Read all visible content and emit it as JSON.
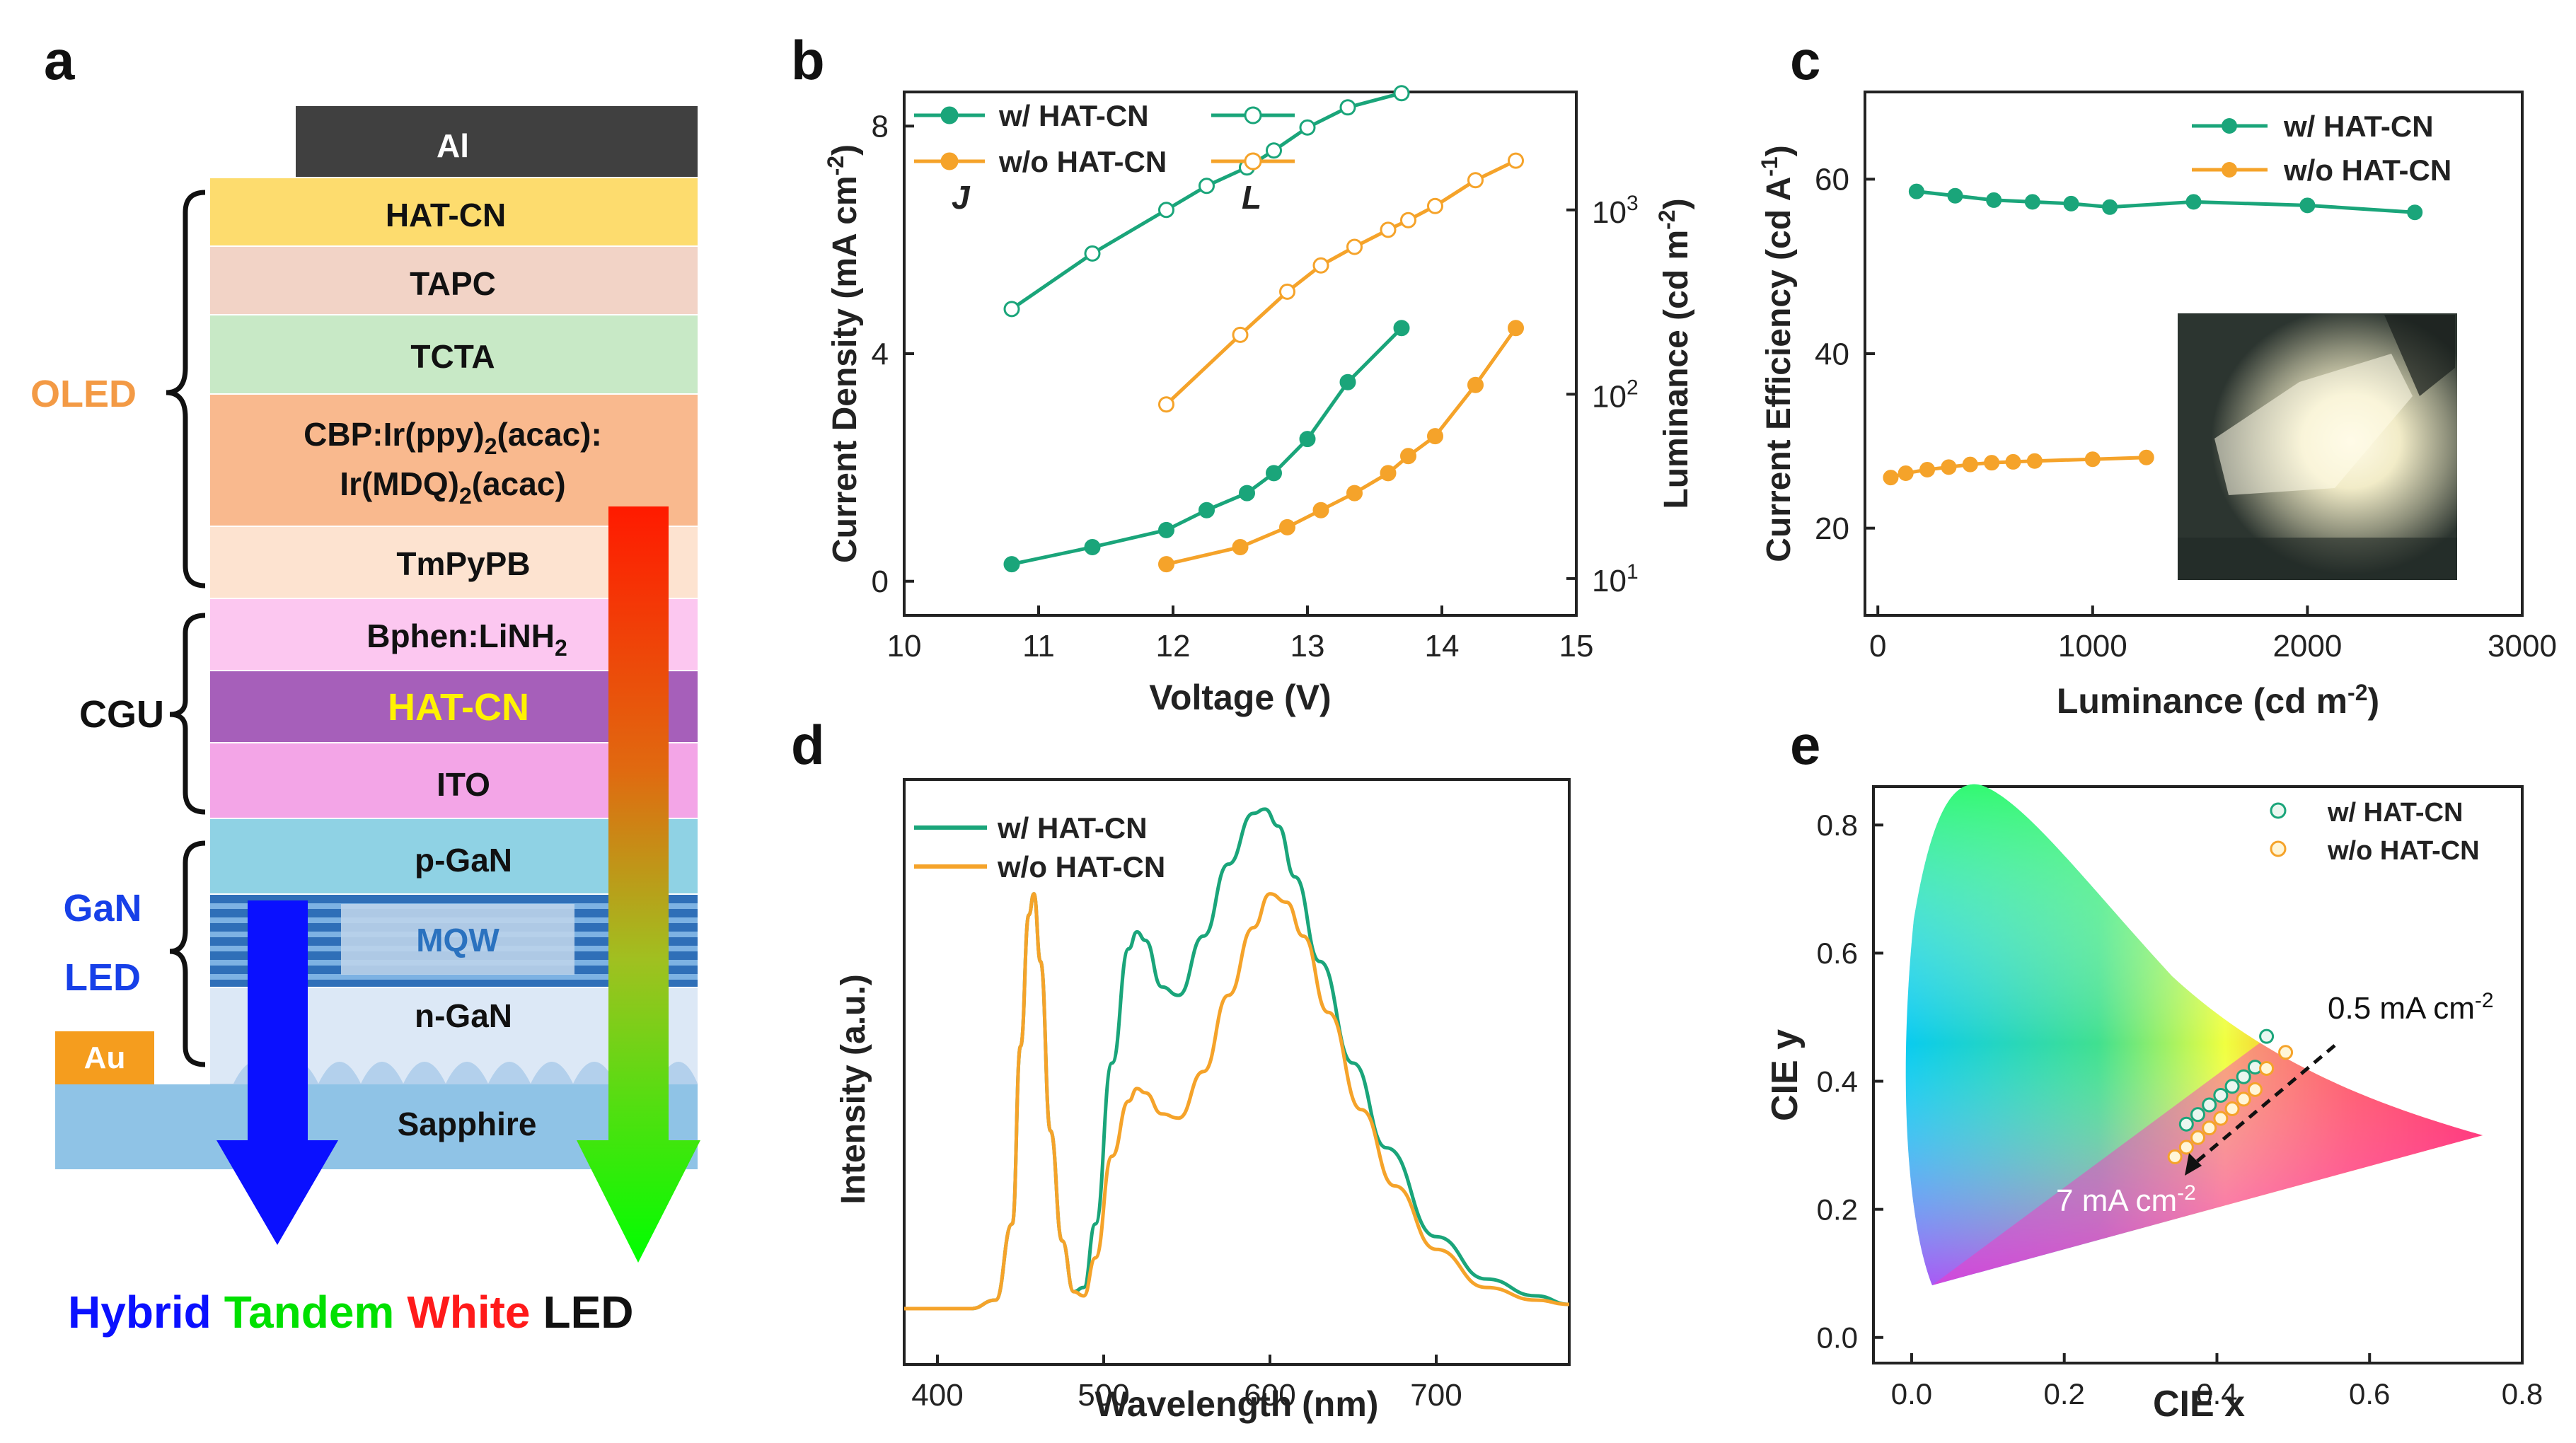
{
  "panel_labels": {
    "a": "a",
    "b": "b",
    "c": "c",
    "d": "d",
    "e": "e"
  },
  "colors": {
    "with": "#1aa57a",
    "without": "#f5a32a",
    "axis": "#222222"
  },
  "panel_a": {
    "layers": {
      "al": "Al",
      "hatcn_top": "HAT-CN",
      "tapc": "TAPC",
      "tcta": "TCTA",
      "eml_line1": "CBP:Ir(ppy)",
      "eml_sub1": "2",
      "eml_line1b": "(acac):",
      "eml_line2": "Ir(MDQ)",
      "eml_sub2": "2",
      "eml_line2b": "(acac)",
      "tmpypb": "TmPyPB",
      "bphen": "Bphen:LiNH",
      "bphen_sub": "2",
      "hatcn_cgu": "HAT-CN",
      "ito": "ITO",
      "pgan": "p-GaN",
      "mqw": "MQW",
      "ngan": "n-GaN",
      "au": "Au",
      "sapphire": "Sapphire"
    },
    "groups": {
      "oled": "OLED",
      "cgu": "CGU",
      "gan1": "GaN",
      "gan2": "LED"
    },
    "title": {
      "w1": "Hybrid",
      "w2": "Tandem",
      "w3": "White",
      "w4": "LED"
    }
  },
  "chart_data": [
    {
      "panel": "b",
      "type": "line",
      "xlabel": "Voltage (V)",
      "ylabel": "Current Density (mA cm",
      "ylabel_sup": "-2",
      "y2label": "Luminance (cd m",
      "y2label_sup": "-2",
      "xlim": [
        10,
        15
      ],
      "ylim": [
        -0.6,
        8.6
      ],
      "y2lim_log": [
        0.8,
        3.64
      ],
      "xticks": [
        "10",
        "11",
        "12",
        "13",
        "14",
        "15"
      ],
      "yticks": [
        "0",
        "4",
        "8"
      ],
      "y2ticks": [
        {
          "base": "10",
          "exp": "1"
        },
        {
          "base": "10",
          "exp": "2"
        },
        {
          "base": "10",
          "exp": "3"
        }
      ],
      "label_j": "J",
      "label_l": "L",
      "legend": {
        "with": "w/   HAT-CN",
        "without": "w/o HAT-CN"
      },
      "series": [
        {
          "name": "w/ HAT-CN J",
          "axis": "left",
          "filled": true,
          "color": "#1aa57a",
          "x": [
            10.8,
            11.4,
            11.95,
            12.25,
            12.55,
            12.75,
            13.0,
            13.3,
            13.7
          ],
          "y": [
            0.3,
            0.6,
            0.9,
            1.25,
            1.55,
            1.9,
            2.5,
            3.5,
            4.45
          ]
        },
        {
          "name": "w/o HAT-CN J",
          "axis": "left",
          "filled": true,
          "color": "#f5a32a",
          "x": [
            11.95,
            12.5,
            12.85,
            13.1,
            13.35,
            13.6,
            13.75,
            13.95,
            14.25,
            14.55
          ],
          "y": [
            0.3,
            0.6,
            0.95,
            1.25,
            1.55,
            1.9,
            2.2,
            2.55,
            3.45,
            4.45
          ]
        },
        {
          "name": "w/ HAT-CN L",
          "axis": "right",
          "filled": false,
          "color": "#1aa57a",
          "x": [
            10.8,
            11.4,
            11.95,
            12.25,
            12.55,
            12.75,
            13.0,
            13.3,
            13.7
          ],
          "y": [
            290,
            580,
            1000,
            1350,
            1700,
            2100,
            2800,
            3600,
            4300
          ]
        },
        {
          "name": "w/o HAT-CN L",
          "axis": "right",
          "filled": false,
          "color": "#f5a32a",
          "x": [
            11.95,
            12.5,
            12.85,
            13.1,
            13.35,
            13.6,
            13.75,
            13.95,
            14.25,
            14.55
          ],
          "y": [
            88,
            210,
            360,
            500,
            630,
            780,
            880,
            1050,
            1450,
            1850
          ]
        }
      ]
    },
    {
      "panel": "c",
      "type": "line",
      "xlabel": "Luminance (cd m",
      "xlabel_sup": "-2",
      "ylabel": "Current Efficiency (cd A",
      "ylabel_sup": "-1",
      "xlim": [
        -60,
        3000
      ],
      "ylim": [
        10,
        70
      ],
      "xticks": [
        "0",
        "1000",
        "2000",
        "3000"
      ],
      "yticks": [
        "20",
        "40",
        "60"
      ],
      "legend": {
        "with": "w/   HAT-CN",
        "without": "w/o HAT-CN"
      },
      "series": [
        {
          "name": "w/ HAT-CN",
          "color": "#1aa57a",
          "filled": true,
          "x": [
            180,
            360,
            540,
            720,
            900,
            1080,
            1470,
            2000,
            2500
          ],
          "y": [
            58.6,
            58.1,
            57.6,
            57.4,
            57.2,
            56.8,
            57.4,
            57.0,
            56.2
          ]
        },
        {
          "name": "w/o HAT-CN",
          "color": "#f5a32a",
          "filled": true,
          "x": [
            60,
            130,
            230,
            330,
            430,
            530,
            630,
            730,
            1000,
            1250
          ],
          "y": [
            25.8,
            26.3,
            26.7,
            27.0,
            27.3,
            27.5,
            27.6,
            27.7,
            27.9,
            28.1
          ]
        }
      ]
    },
    {
      "panel": "d",
      "type": "line",
      "xlabel": "Wavelength (nm)",
      "ylabel": "Intensity (a.u.)",
      "xlim": [
        380,
        780
      ],
      "ylim": [
        0,
        1.25
      ],
      "xticks": [
        "400",
        "500",
        "600",
        "700"
      ],
      "legend": {
        "with": "w/   HAT-CN",
        "without": "w/o HAT-CN"
      },
      "series": [
        {
          "name": "w/ HAT-CN",
          "color": "#1aa57a",
          "x": [
            380,
            420,
            435,
            445,
            450,
            455,
            458,
            462,
            468,
            475,
            482,
            488,
            495,
            505,
            515,
            520,
            525,
            535,
            545,
            560,
            575,
            590,
            597,
            605,
            615,
            630,
            650,
            670,
            700,
            730,
            760,
            780
          ],
          "y": [
            0,
            0,
            0.02,
            0.2,
            0.62,
            0.93,
            0.98,
            0.82,
            0.42,
            0.16,
            0.04,
            0.05,
            0.2,
            0.58,
            0.85,
            0.89,
            0.87,
            0.76,
            0.74,
            0.88,
            1.05,
            1.17,
            1.18,
            1.14,
            1.02,
            0.82,
            0.58,
            0.38,
            0.17,
            0.07,
            0.03,
            0.01
          ]
        },
        {
          "name": "w/o HAT-CN",
          "color": "#f5a32a",
          "x": [
            380,
            420,
            435,
            445,
            450,
            455,
            458,
            462,
            468,
            475,
            482,
            488,
            495,
            505,
            515,
            520,
            525,
            535,
            545,
            560,
            575,
            590,
            600,
            610,
            620,
            635,
            655,
            675,
            700,
            730,
            760,
            780
          ],
          "y": [
            0,
            0,
            0.02,
            0.2,
            0.62,
            0.93,
            0.98,
            0.82,
            0.42,
            0.16,
            0.04,
            0.03,
            0.12,
            0.36,
            0.49,
            0.52,
            0.51,
            0.46,
            0.45,
            0.56,
            0.74,
            0.9,
            0.98,
            0.96,
            0.88,
            0.7,
            0.47,
            0.29,
            0.14,
            0.05,
            0.02,
            0.01
          ]
        }
      ]
    },
    {
      "panel": "e",
      "type": "scatter",
      "xlabel": "CIE x",
      "ylabel": "CIE y",
      "xlim": [
        -0.05,
        0.8
      ],
      "ylim": [
        -0.04,
        0.86
      ],
      "xticks": [
        "0.0",
        "0.2",
        "0.4",
        "0.6",
        "0.8"
      ],
      "yticks": [
        "0.0",
        "0.2",
        "0.4",
        "0.6",
        "0.8"
      ],
      "annotations": {
        "top": "0.5 mA cm",
        "top_sup": "-2",
        "bottom": "7 mA cm",
        "bottom_sup": "-2"
      },
      "legend": {
        "with": "w/   HAT-CN",
        "without": "w/o HAT-CN"
      },
      "series": [
        {
          "name": "w/ HAT-CN",
          "color": "#1aa57a",
          "x": [
            0.36,
            0.375,
            0.39,
            0.405,
            0.42,
            0.435,
            0.45,
            0.465
          ],
          "y": [
            0.333,
            0.348,
            0.363,
            0.378,
            0.392,
            0.407,
            0.422,
            0.47
          ]
        },
        {
          "name": "w/o HAT-CN",
          "color": "#f5a32a",
          "x": [
            0.345,
            0.36,
            0.375,
            0.39,
            0.405,
            0.42,
            0.435,
            0.45,
            0.465,
            0.49
          ],
          "y": [
            0.282,
            0.297,
            0.312,
            0.327,
            0.342,
            0.357,
            0.372,
            0.387,
            0.42,
            0.445
          ]
        }
      ]
    }
  ]
}
